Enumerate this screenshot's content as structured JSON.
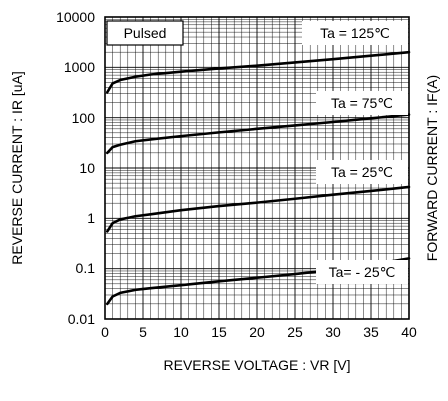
{
  "chart_data": {
    "type": "line",
    "xlabel": "REVERSE VOLTAGE : VR [V]",
    "ylabel": "REVERSE CURRENT : IR [uA]",
    "y2label": "FORWARD CURRENT : IF(A)",
    "xlim": [
      0,
      40
    ],
    "ylim": [
      0.01,
      10000
    ],
    "yscale": "log",
    "grid": true,
    "x_ticks": [
      "0",
      "5",
      "10",
      "15",
      "20",
      "25",
      "30",
      "35",
      "40"
    ],
    "y_ticks": [
      "10000",
      "1000",
      "100",
      "10",
      "1",
      "0.1",
      "0.01"
    ],
    "annotations": {
      "mode": "Pulsed",
      "ta_125": "Ta = 125℃",
      "ta_75": "Ta = 75℃",
      "ta_25": "Ta = 25℃",
      "ta_m25": "Ta= - 25℃"
    },
    "series": [
      {
        "label": "Ta = 125℃",
        "x": [
          0.3,
          1,
          2,
          4,
          6,
          10,
          15,
          20,
          25,
          30,
          35,
          40
        ],
        "y": [
          320,
          480,
          560,
          650,
          720,
          820,
          950,
          1080,
          1250,
          1450,
          1700,
          2000
        ]
      },
      {
        "label": "Ta = 75℃",
        "x": [
          0.3,
          1,
          2,
          4,
          6,
          10,
          15,
          20,
          25,
          30,
          35,
          40
        ],
        "y": [
          20,
          26,
          29,
          34,
          37,
          43,
          51,
          60,
          70,
          82,
          97,
          115
        ]
      },
      {
        "label": "Ta = 25℃",
        "x": [
          0.3,
          1,
          2,
          4,
          6,
          10,
          15,
          20,
          25,
          30,
          35,
          40
        ],
        "y": [
          0.55,
          0.8,
          0.95,
          1.1,
          1.2,
          1.45,
          1.75,
          2.05,
          2.45,
          2.95,
          3.5,
          4.2
        ]
      },
      {
        "label": "Ta= - 25℃",
        "x": [
          0.3,
          1,
          2,
          4,
          6,
          10,
          15,
          20,
          25,
          30,
          35,
          40
        ],
        "y": [
          0.02,
          0.028,
          0.033,
          0.038,
          0.041,
          0.047,
          0.056,
          0.066,
          0.078,
          0.095,
          0.12,
          0.16
        ]
      }
    ]
  }
}
